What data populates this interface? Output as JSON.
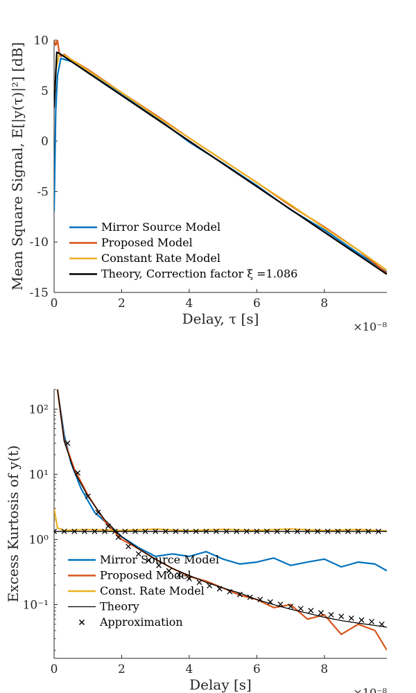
{
  "chart_data": [
    {
      "type": "line",
      "xlabel": "Delay, τ [s]",
      "ylabel": "Mean Square Signal, E[|y(τ)|²] [dB]",
      "x_exponent": "×10⁻⁸",
      "xlim": [
        0,
        9.85
      ],
      "ylim": [
        -15,
        10
      ],
      "xticks": [
        0,
        2,
        4,
        6,
        8
      ],
      "xtick_labels": [
        "0",
        "2",
        "4",
        "6",
        "8"
      ],
      "yticks": [
        10,
        5,
        0,
        -5,
        -10,
        -15
      ],
      "ytick_labels": [
        "10",
        "5",
        "0",
        "-5",
        "-10",
        "-15"
      ],
      "legend_position": "bottom-left",
      "series": [
        {
          "name": "Mirror Source Model",
          "color": "#0072BD",
          "x": [
            0,
            0.05,
            0.1,
            0.2,
            0.3,
            0.5,
            1,
            2,
            3,
            4,
            5,
            6,
            7,
            8,
            9,
            9.85
          ],
          "y": [
            -7,
            3,
            6.5,
            8.2,
            8.1,
            7.9,
            6.9,
            4.6,
            2.4,
            -0.1,
            -2.2,
            -4.4,
            -6.8,
            -8.8,
            -11.1,
            -13
          ]
        },
        {
          "name": "Proposed Model",
          "color": "#D95319",
          "x": [
            0,
            0.05,
            0.1,
            0.15,
            0.2,
            0.3,
            0.5,
            1,
            2,
            3,
            4,
            5,
            6,
            7,
            8,
            9,
            9.85
          ],
          "y": [
            10,
            9.5,
            10,
            8.8,
            8.4,
            8.6,
            8.1,
            7.1,
            4.8,
            2.6,
            0.3,
            -1.9,
            -4.1,
            -6.4,
            -8.5,
            -10.8,
            -13.1
          ]
        },
        {
          "name": "Constant Rate Model",
          "color": "#EDB120",
          "x": [
            0,
            0.05,
            0.15,
            0.3,
            0.5,
            1,
            2,
            3,
            4,
            5,
            6,
            7,
            8,
            9,
            9.85
          ],
          "y": [
            3.5,
            7,
            8.6,
            8.5,
            8.1,
            7.0,
            4.8,
            2.5,
            0.3,
            -1.9,
            -4.1,
            -6.3,
            -8.6,
            -10.8,
            -12.8
          ]
        },
        {
          "name": "Theory, Correction factor ξ =1.086",
          "color": "#000000",
          "x": [
            0,
            0.08,
            0.15,
            9.85
          ],
          "y": [
            3.3,
            8.8,
            8.7,
            -13.2
          ]
        }
      ]
    },
    {
      "type": "line",
      "xlabel": "Delay [s]",
      "ylabel": "Excess Kurtosis of y(t)",
      "x_exponent": "×10⁻⁸",
      "xlim": [
        0,
        9.85
      ],
      "ylim": [
        0.015,
        200
      ],
      "yscale": "log",
      "xticks": [
        0,
        2,
        4,
        6,
        8
      ],
      "xtick_labels": [
        "0",
        "2",
        "4",
        "6",
        "8"
      ],
      "yticks": [
        100,
        10,
        1,
        0.1
      ],
      "ytick_labels": [
        "10²",
        "10¹",
        "10⁰",
        "10⁻¹"
      ],
      "legend_position": "bottom-left",
      "series": [
        {
          "name": "Mirror Source Model",
          "color": "#0072BD",
          "x": [
            0.1,
            0.3,
            0.5,
            0.8,
            1.2,
            1.6,
            2,
            2.5,
            3,
            3.5,
            4,
            4.5,
            5,
            5.5,
            6,
            6.5,
            7,
            7.5,
            8,
            8.5,
            9,
            9.5,
            9.85
          ],
          "y": [
            200,
            40,
            15,
            6,
            2.6,
            1.7,
            1.1,
            0.75,
            0.55,
            0.6,
            0.55,
            0.65,
            0.5,
            0.42,
            0.45,
            0.52,
            0.4,
            0.45,
            0.5,
            0.38,
            0.45,
            0.42,
            0.33
          ]
        },
        {
          "name": "Proposed Model",
          "color": "#D95319",
          "x": [
            0.1,
            0.3,
            0.6,
            1,
            1.5,
            2,
            2.5,
            3,
            3.5,
            4,
            4.5,
            5,
            5.5,
            6,
            6.5,
            7,
            7.5,
            8,
            8.5,
            9,
            9.5,
            9.85
          ],
          "y": [
            200,
            33,
            12,
            4.8,
            1.9,
            1.0,
            0.72,
            0.5,
            0.36,
            0.27,
            0.23,
            0.18,
            0.14,
            0.12,
            0.09,
            0.1,
            0.06,
            0.07,
            0.035,
            0.05,
            0.04,
            0.02
          ]
        },
        {
          "name": "Const. Rate Model",
          "color": "#EDB120",
          "x": [
            0,
            0.1,
            0.3,
            1,
            2,
            3,
            4,
            5,
            6,
            7,
            8,
            9,
            9.85
          ],
          "y": [
            3.0,
            1.5,
            1.38,
            1.42,
            1.37,
            1.44,
            1.36,
            1.43,
            1.38,
            1.45,
            1.37,
            1.42,
            1.35
          ]
        },
        {
          "name": "Theory",
          "color": "#000000",
          "x": [
            0.1,
            0.3,
            0.6,
            1,
            1.5,
            2,
            2.5,
            3,
            3.5,
            4,
            4.5,
            5,
            5.5,
            6,
            6.5,
            7,
            7.5,
            8,
            8.5,
            9,
            9.5,
            9.85
          ],
          "y": [
            200,
            32,
            11,
            4.6,
            2.0,
            1.1,
            0.72,
            0.5,
            0.36,
            0.28,
            0.22,
            0.18,
            0.15,
            0.12,
            0.1,
            0.085,
            0.074,
            0.064,
            0.057,
            0.052,
            0.048,
            0.045
          ]
        },
        {
          "name": "Theory (constant)",
          "color": "#000000",
          "x": [
            0,
            9.85
          ],
          "y": [
            1.33,
            1.33
          ]
        },
        {
          "name": "Approximation",
          "color": "#000000",
          "marker": "x",
          "x": [
            0.4,
            0.7,
            1.0,
            1.3,
            1.6,
            1.9,
            2.2,
            2.5,
            2.8,
            3.1,
            3.4,
            3.7,
            4.0,
            4.3,
            4.6,
            4.9,
            5.2,
            5.5,
            5.8,
            6.1,
            6.4,
            6.7,
            7.0,
            7.3,
            7.6,
            7.9,
            8.2,
            8.5,
            8.8,
            9.1,
            9.4,
            9.7
          ],
          "y": [
            30,
            10.5,
            4.6,
            2.6,
            1.6,
            1.08,
            0.78,
            0.6,
            0.48,
            0.4,
            0.33,
            0.285,
            0.25,
            0.22,
            0.195,
            0.175,
            0.158,
            0.143,
            0.13,
            0.12,
            0.11,
            0.101,
            0.094,
            0.087,
            0.081,
            0.075,
            0.07,
            0.066,
            0.062,
            0.058,
            0.055,
            0.05
          ]
        },
        {
          "name": "Approximation (constant)",
          "color": "#000000",
          "marker": "x",
          "x": [
            0,
            0.3,
            0.6,
            0.9,
            1.2,
            1.5,
            1.8,
            2.1,
            2.4,
            2.7,
            3.0,
            3.3,
            3.6,
            3.9,
            4.2,
            4.5,
            4.8,
            5.1,
            5.4,
            5.7,
            6.0,
            6.3,
            6.6,
            6.9,
            7.2,
            7.5,
            7.8,
            8.1,
            8.4,
            8.7,
            9.0,
            9.3,
            9.6
          ],
          "y": [
            1.33,
            1.33,
            1.33,
            1.33,
            1.33,
            1.33,
            1.33,
            1.33,
            1.33,
            1.33,
            1.33,
            1.33,
            1.33,
            1.33,
            1.33,
            1.33,
            1.33,
            1.33,
            1.33,
            1.33,
            1.33,
            1.33,
            1.33,
            1.33,
            1.33,
            1.33,
            1.33,
            1.33,
            1.33,
            1.33,
            1.33,
            1.33,
            1.33
          ]
        }
      ],
      "legend_entries": [
        {
          "label": "Mirror Source Model",
          "color": "#0072BD",
          "style": "line"
        },
        {
          "label": "Proposed Model",
          "color": "#D95319",
          "style": "line"
        },
        {
          "label": "Const. Rate Model",
          "color": "#EDB120",
          "style": "line"
        },
        {
          "label": "Theory",
          "color": "#000000",
          "style": "thin-line"
        },
        {
          "label": "Approximation",
          "color": "#000000",
          "style": "x-marker"
        }
      ]
    }
  ]
}
